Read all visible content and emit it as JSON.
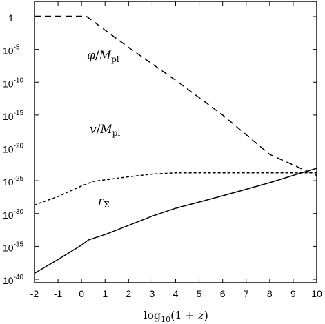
{
  "chart_data": {
    "type": "line",
    "title": "",
    "xlabel": {
      "pre": "log",
      "sub": "10",
      "post": "(1 + ",
      "var": "z",
      "end": ")"
    },
    "ylabel": "",
    "xlim": [
      -2,
      10
    ],
    "ylim_log10": [
      -40,
      3
    ],
    "yscale": "log",
    "grid": false,
    "x_ticks": [
      "-2",
      "-1",
      "0",
      "1",
      "2",
      "3",
      "4",
      "5",
      "6",
      "7",
      "8",
      "9",
      "10"
    ],
    "y_ticks": [
      {
        "value": 0,
        "base": "1",
        "exp": ""
      },
      {
        "value": -5,
        "base": "10",
        "exp": "-5"
      },
      {
        "value": -10,
        "base": "10",
        "exp": "-10"
      },
      {
        "value": -15,
        "base": "10",
        "exp": "-15"
      },
      {
        "value": -20,
        "base": "10",
        "exp": "-20"
      },
      {
        "value": -25,
        "base": "10",
        "exp": "-25"
      },
      {
        "value": -30,
        "base": "10",
        "exp": "-30"
      },
      {
        "value": -35,
        "base": "10",
        "exp": "-35"
      },
      {
        "value": -40,
        "base": "10",
        "exp": "-40"
      }
    ],
    "series": [
      {
        "id": "phi",
        "label": {
          "var": "φ",
          "mid": "/",
          "var2": "M",
          "sub": "pl"
        },
        "dash": "long",
        "x": [
          -2,
          0.2,
          2,
          4,
          6,
          8,
          10
        ],
        "log10_y": [
          1,
          1,
          -4.7,
          -9.7,
          -15,
          -21,
          -24.2
        ]
      },
      {
        "id": "v",
        "label": {
          "var": "v",
          "mid": "/",
          "var2": "M",
          "sub": "pl"
        },
        "dash": "short",
        "x": [
          -2,
          -1,
          0,
          0.5,
          2,
          3,
          4,
          6,
          8,
          10
        ],
        "log10_y": [
          -28.7,
          -27.4,
          -25.8,
          -25.1,
          -24.4,
          -24.0,
          -23.8,
          -23.8,
          -23.8,
          -23.8
        ]
      },
      {
        "id": "r_sigma",
        "label": {
          "var": "r",
          "sub": "Σ"
        },
        "dash": "solid",
        "x": [
          -2,
          -1,
          0,
          0.3,
          1,
          2,
          3,
          4,
          6,
          8,
          10
        ],
        "log10_y": [
          -39.1,
          -37.0,
          -34.8,
          -34.0,
          -33.2,
          -31.8,
          -30.4,
          -29.2,
          -27.3,
          -25.3,
          -23.1
        ]
      }
    ]
  }
}
